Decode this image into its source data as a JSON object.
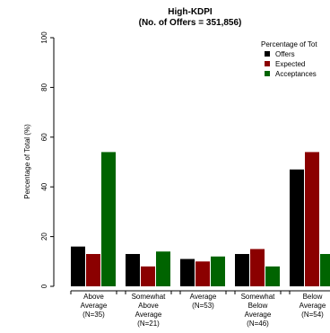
{
  "chart_data": {
    "type": "bar",
    "title": "High-KDPI",
    "subtitle": "(No. of Offers = 351,856)",
    "xlabel": "",
    "ylabel": "Percentage of Total (%)",
    "ylim": [
      0,
      100
    ],
    "yticks": [
      "0",
      "20",
      "40",
      "60",
      "80",
      "100"
    ],
    "grid": false,
    "legend_position": "top-right",
    "legend_title": "Percentage of Tot",
    "categories": [
      [
        "Above",
        "Average",
        "(N=35)"
      ],
      [
        "Somewhat",
        "Above",
        "Average",
        "(N=21)"
      ],
      [
        "Average",
        "(N=53)"
      ],
      [
        "Somewhat",
        "Below",
        "Average",
        "(N=46)"
      ],
      [
        "Below",
        "Average",
        "(N=54)"
      ]
    ],
    "series": [
      {
        "name": "Offers",
        "color": "#000000",
        "values": [
          16,
          13,
          11,
          13,
          47
        ]
      },
      {
        "name": "Expected",
        "color": "#8b0000",
        "values": [
          13,
          8,
          10,
          15,
          54
        ]
      },
      {
        "name": "Acceptances",
        "color": "#006400",
        "values": [
          54,
          14,
          12,
          8,
          13
        ]
      }
    ]
  }
}
